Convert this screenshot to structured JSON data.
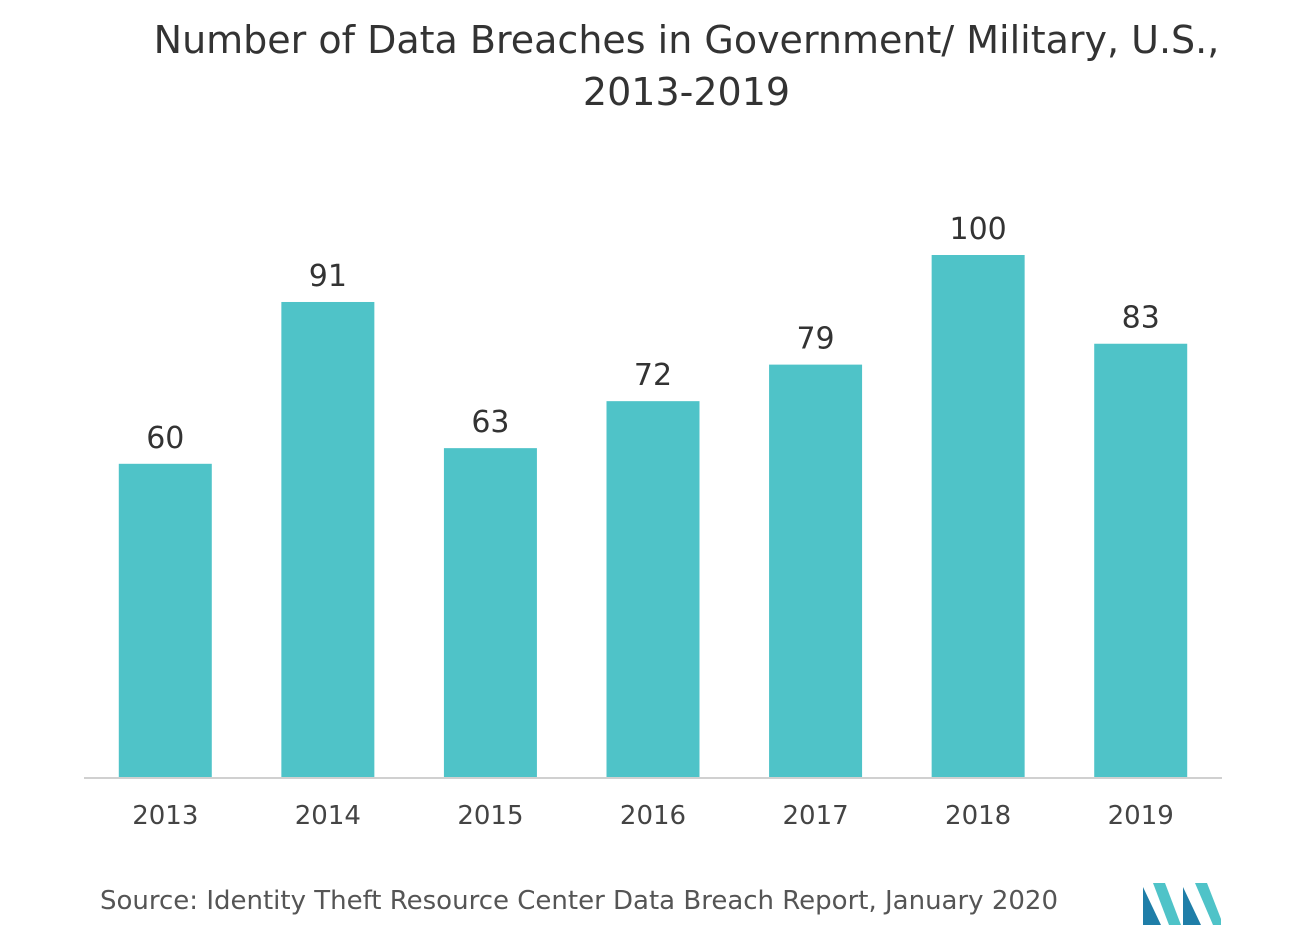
{
  "title": {
    "line1": "Number of Data Breaches in Government/ Military, U.S.,",
    "line2": "2013-2019"
  },
  "chart_data": {
    "type": "bar",
    "categories": [
      "2013",
      "2014",
      "2015",
      "2016",
      "2017",
      "2018",
      "2019"
    ],
    "values": [
      60,
      91,
      63,
      72,
      79,
      100,
      83
    ],
    "ylim": [
      0,
      100
    ],
    "grid": false,
    "legend": "none",
    "bar_color": "#4fc3c8"
  },
  "source": "Source:  Identity Theft Resource Center Data Breach Report, January 2020",
  "logo": {
    "icon": "mordor-intelligence-logo",
    "colors": [
      "#1f7ea8",
      "#4fc3c8"
    ]
  }
}
